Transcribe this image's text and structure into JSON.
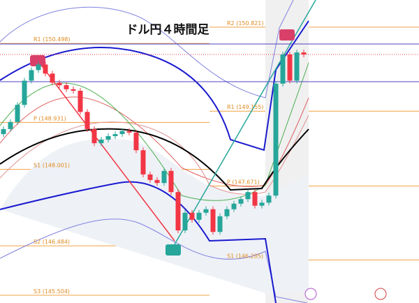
{
  "chart_data": {
    "type": "candlestick",
    "title": "ドル円４時間足",
    "ylim": [
      145.35,
      151.36
    ],
    "open": [
      148.7,
      148.8,
      148.94,
      149.28,
      149.76,
      149.97,
      150.08,
      149.9,
      149.72,
      149.67,
      149.59,
      149.56,
      149.14,
      148.8,
      148.52,
      148.59,
      148.66,
      148.7,
      148.76,
      148.73,
      148.38,
      147.9,
      147.79,
      147.73,
      147.97,
      147.55,
      146.79,
      147.14,
      147.0,
      147.14,
      147.21,
      146.76,
      147.07,
      147.21,
      147.32,
      147.41,
      147.55,
      147.28,
      147.34,
      147.48,
      149.7,
      150.28,
      149.76,
      150.32
    ],
    "close": [
      148.8,
      148.94,
      149.28,
      149.76,
      149.97,
      150.08,
      149.9,
      149.72,
      149.67,
      149.59,
      149.56,
      149.14,
      148.8,
      148.52,
      148.59,
      148.66,
      148.7,
      148.76,
      148.73,
      148.38,
      147.9,
      147.79,
      147.73,
      147.97,
      147.55,
      146.79,
      147.14,
      147.0,
      147.14,
      147.21,
      146.76,
      147.07,
      147.21,
      147.32,
      147.41,
      147.55,
      147.28,
      147.34,
      147.48,
      149.7,
      150.28,
      149.76,
      150.32,
      150.28
    ],
    "up_color": "#26a69a",
    "down_color": "#f23645",
    "levels_left": [
      {
        "label": "R1 (150.498)",
        "value": 150.498
      },
      {
        "label": "P (148.931)",
        "value": 148.931
      },
      {
        "label": "S1 (148.001)",
        "value": 148.001
      },
      {
        "label": "S2 (146.484)",
        "value": 146.484
      },
      {
        "label": "S3 (145.504)",
        "value": 145.504
      }
    ],
    "levels_right": [
      {
        "label": "R2 (150.821)",
        "value": 150.821
      },
      {
        "label": "R1 (149.155)",
        "value": 149.155
      },
      {
        "label": "P (147.671)",
        "value": 147.671
      },
      {
        "label": "S1 (146.205)",
        "value": 146.205
      }
    ],
    "level_color": "#f0a040"
  }
}
